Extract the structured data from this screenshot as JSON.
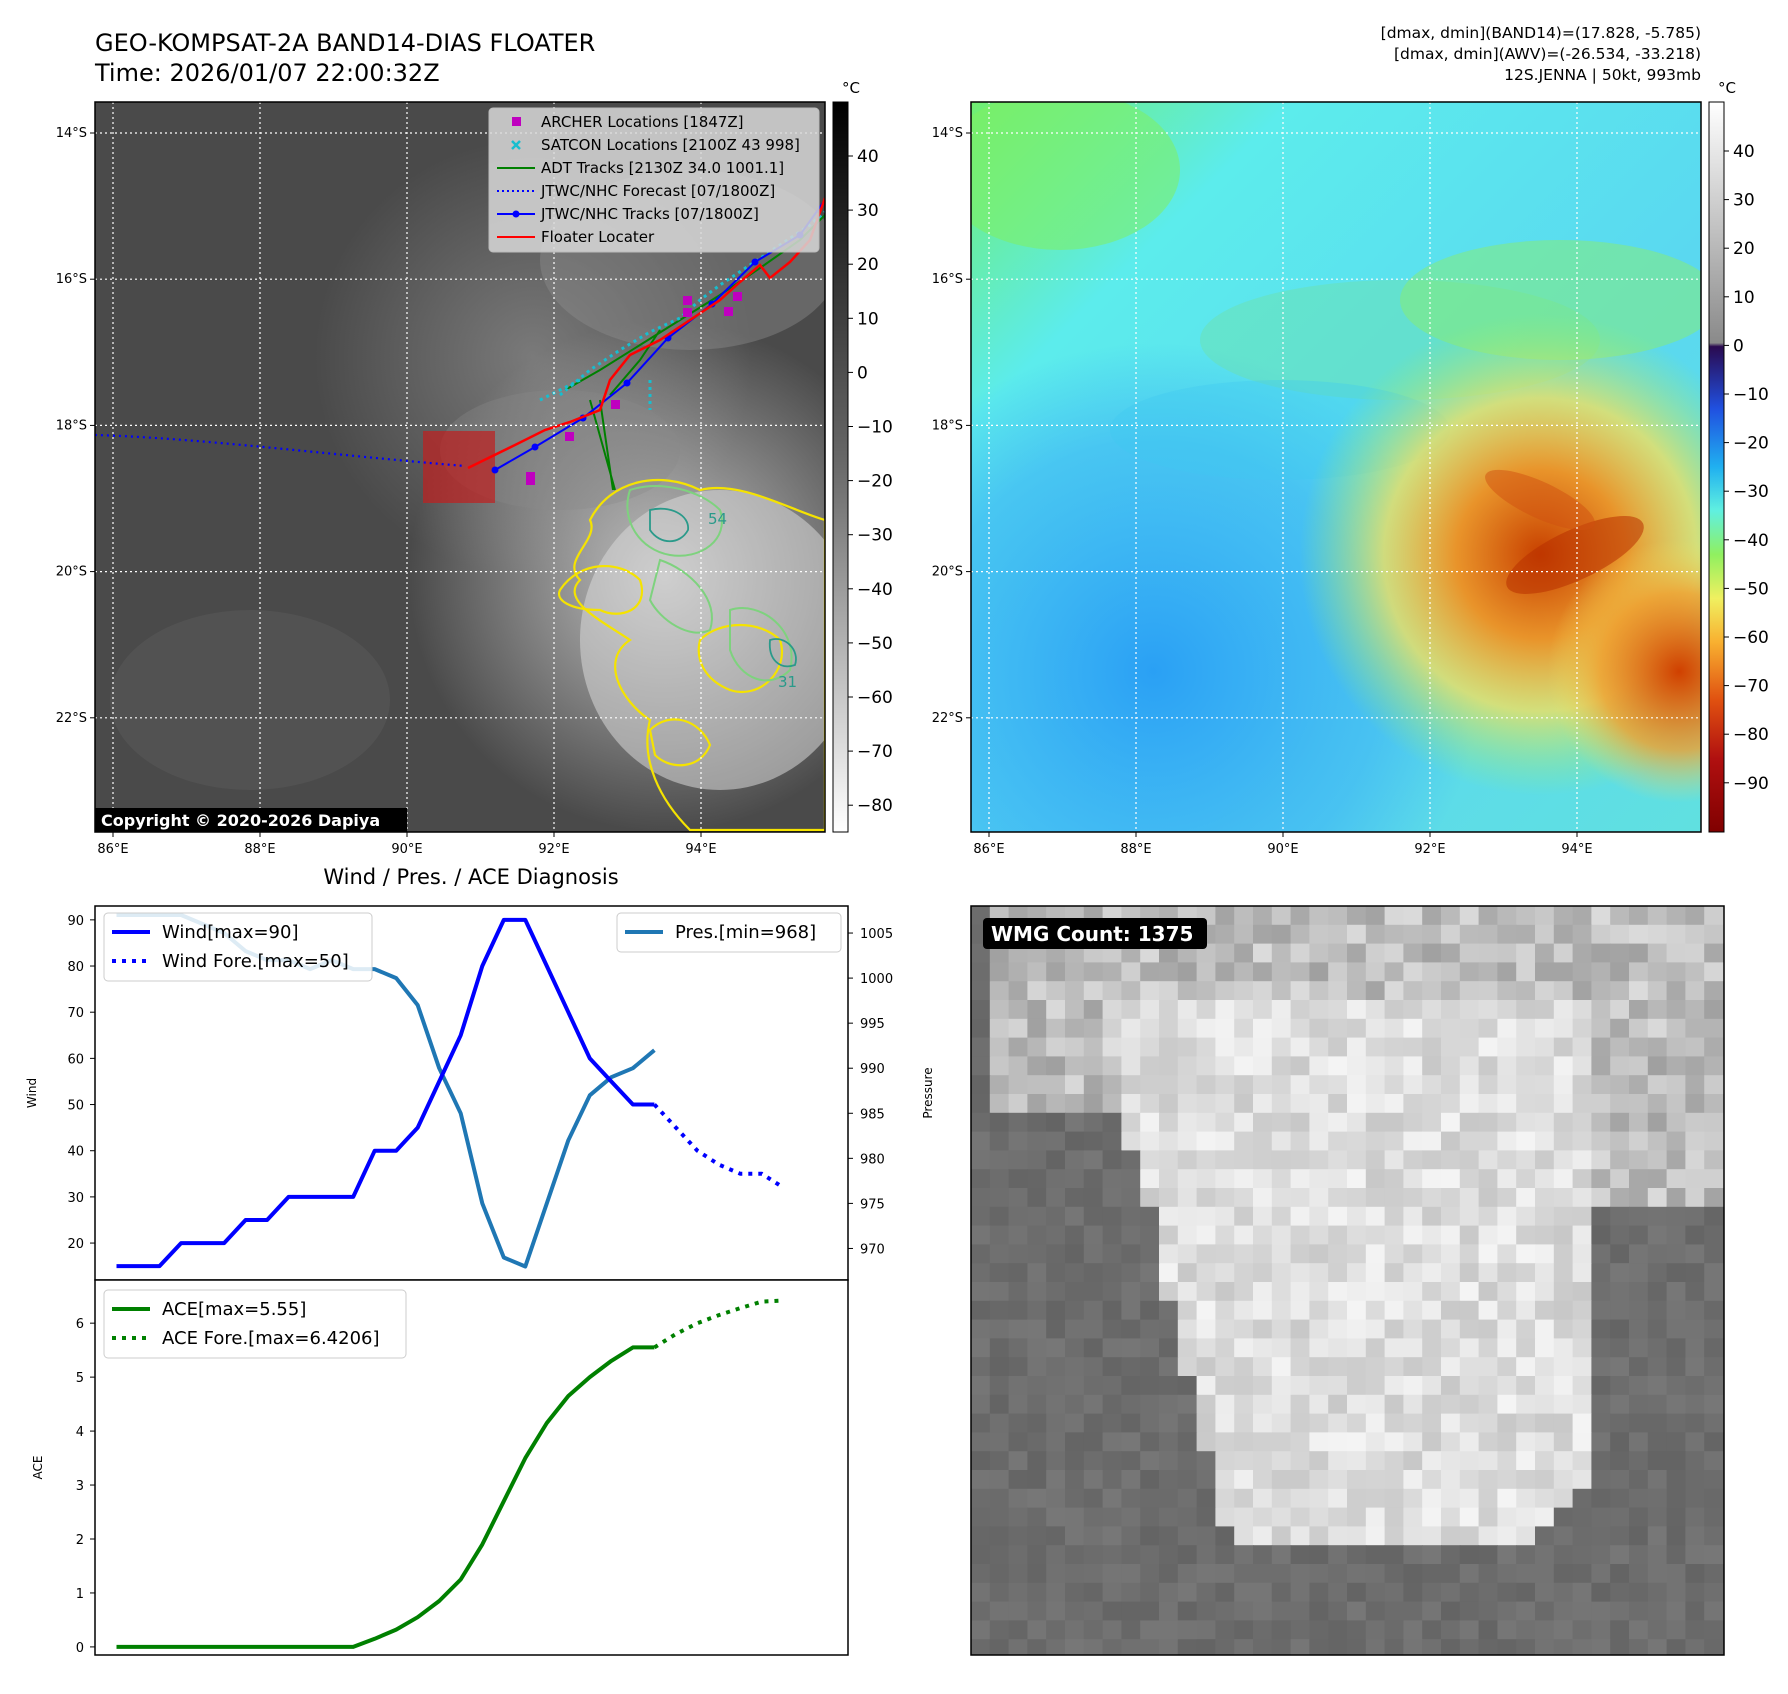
{
  "header": {
    "title_line1": "GEO-KOMPSAT-2A BAND14-DIAS FLOATER",
    "title_line2": "Time: 2026/01/07 22:00:32Z",
    "info_line1": "[dmax, dmin](BAND14)=(17.828, -5.785)",
    "info_line2": "[dmax, dmin](AWV)=(-26.534, -33.218)",
    "info_line3": "12S.JENNA | 50kt, 993mb"
  },
  "map": {
    "lat_labels": [
      "14°S",
      "16°S",
      "18°S",
      "20°S",
      "22°S"
    ],
    "lon_labels": [
      "86°E",
      "88°E",
      "90°E",
      "92°E",
      "94°E"
    ],
    "lat_values": [
      -14,
      -16,
      -18,
      -20,
      -22
    ],
    "lon_values": [
      86,
      88,
      90,
      92,
      94
    ],
    "copyright": "Copyright © 2020-2026 Dapiya",
    "contour_labels": [
      "54",
      "31"
    ],
    "legend": [
      {
        "label": "ARCHER Locations [1847Z]",
        "color": "#bf00bf",
        "kind": "square"
      },
      {
        "label": "SATCON Locations [2100Z 43 998]",
        "color": "#17becf",
        "kind": "x"
      },
      {
        "label": "ADT Tracks [2130Z 34.0 1001.1]",
        "color": "#008000",
        "kind": "line"
      },
      {
        "label": "JTWC/NHC Forecast [07/1800Z]",
        "color": "#0000ff",
        "kind": "dotted"
      },
      {
        "label": "JTWC/NHC Tracks [07/1800Z]",
        "color": "#0000ff",
        "kind": "line-dot"
      },
      {
        "label": "Floater Locater",
        "color": "#ff0000",
        "kind": "line"
      }
    ]
  },
  "colorbar_gray": {
    "unit": "°C",
    "ticks": [
      "40",
      "30",
      "20",
      "10",
      "0",
      "−10",
      "−20",
      "−30",
      "−40",
      "−50",
      "−60",
      "−70",
      "−80"
    ]
  },
  "colorbar_color": {
    "unit": "°C",
    "ticks": [
      "40",
      "30",
      "20",
      "10",
      "0",
      "−10",
      "−20",
      "−30",
      "−40",
      "−50",
      "−60",
      "−70",
      "−80",
      "−90"
    ]
  },
  "wmg": {
    "label": "WMG Count: 1375"
  },
  "chart_data": [
    {
      "type": "line",
      "title": "Wind / Pres. / ACE Diagnosis",
      "ylabel": "Wind",
      "y2label": "Pressure",
      "ylim": [
        12,
        93
      ],
      "y2lim": [
        966.5,
        1008
      ],
      "yticks": [
        20,
        30,
        40,
        50,
        60,
        70,
        80,
        90
      ],
      "y2ticks": [
        970,
        975,
        980,
        985,
        990,
        995,
        1000,
        1005
      ],
      "series": [
        {
          "name": "Wind[max=90]",
          "color": "#0000ff",
          "style": "solid",
          "x": [
            0,
            1,
            2,
            3,
            4,
            5,
            6,
            7,
            8,
            9,
            10,
            11,
            12,
            13,
            14,
            15,
            16,
            17,
            18,
            19,
            20,
            21,
            22,
            23,
            24,
            25
          ],
          "values": [
            15,
            15,
            15,
            20,
            20,
            20,
            25,
            25,
            30,
            30,
            30,
            30,
            40,
            40,
            45,
            55,
            65,
            80,
            90,
            90,
            80,
            70,
            60,
            55,
            50,
            50
          ]
        },
        {
          "name": "Wind Fore.[max=50]",
          "color": "#0000ff",
          "style": "dotted",
          "x": [
            25,
            26,
            27,
            28,
            29,
            30,
            31
          ],
          "values": [
            50,
            45,
            40,
            37,
            35,
            35,
            32
          ]
        },
        {
          "name": "Pres.[min=968]",
          "color": "#1f77b4",
          "style": "solid",
          "x": [
            0,
            1,
            2,
            3,
            4,
            5,
            6,
            7,
            8,
            9,
            10,
            11,
            12,
            13,
            14,
            15,
            16,
            17,
            18,
            19,
            20,
            21,
            22,
            23,
            24,
            25
          ],
          "values": [
            1007,
            1007,
            1007,
            1007,
            1006,
            1005,
            1003,
            1002,
            1002,
            1001,
            1002,
            1001,
            1001,
            1000,
            997,
            990,
            985,
            975,
            969,
            968,
            975,
            982,
            987,
            989,
            990,
            992
          ]
        }
      ]
    },
    {
      "type": "line",
      "ylabel": "ACE",
      "ylim": [
        -0.15,
        6.8
      ],
      "yticks": [
        0,
        1,
        2,
        3,
        4,
        5,
        6
      ],
      "series": [
        {
          "name": "ACE[max=5.55]",
          "color": "#008000",
          "style": "solid",
          "x": [
            0,
            1,
            2,
            3,
            4,
            5,
            6,
            7,
            8,
            9,
            10,
            11,
            12,
            13,
            14,
            15,
            16,
            17,
            18,
            19,
            20,
            21,
            22,
            23,
            24,
            25
          ],
          "values": [
            0,
            0,
            0,
            0,
            0,
            0,
            0,
            0,
            0,
            0,
            0,
            0,
            0.15,
            0.32,
            0.55,
            0.85,
            1.25,
            1.9,
            2.7,
            3.5,
            4.15,
            4.65,
            5.0,
            5.3,
            5.55,
            5.55
          ]
        },
        {
          "name": "ACE Fore.[max=6.4206]",
          "color": "#008000",
          "style": "dotted",
          "x": [
            25,
            26,
            27,
            28,
            29,
            30,
            31
          ],
          "values": [
            5.55,
            5.8,
            6.0,
            6.15,
            6.28,
            6.4,
            6.42
          ]
        }
      ]
    }
  ]
}
